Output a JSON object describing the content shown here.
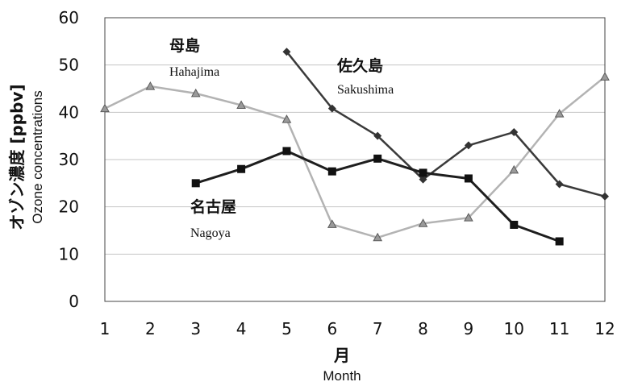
{
  "chart_data": {
    "type": "line",
    "title": "",
    "xlabel": "月",
    "xlabel_en": "Month",
    "ylabel": "オゾン濃度 [ppbv]",
    "ylabel_en": "Ozone concentrations",
    "x": [
      1,
      2,
      3,
      4,
      5,
      6,
      7,
      8,
      9,
      10,
      11,
      12
    ],
    "xlim": [
      1,
      12
    ],
    "ylim": [
      0,
      60
    ],
    "yticks": [
      0,
      10,
      20,
      30,
      40,
      50,
      60
    ],
    "grid": "horizontal",
    "series": [
      {
        "name": "母島",
        "name_en": "Hahajima",
        "marker": "triangle",
        "color": "#b3b3b3",
        "x": [
          1,
          2,
          3,
          4,
          5,
          6,
          7,
          8,
          9,
          10,
          11,
          12
        ],
        "y": [
          40.8,
          45.5,
          44.0,
          41.5,
          38.5,
          16.3,
          13.5,
          16.5,
          17.7,
          27.8,
          39.7,
          47.5
        ]
      },
      {
        "name": "佐久島",
        "name_en": "Sakushima",
        "marker": "diamond",
        "color": "#3a3a3a",
        "x": [
          5,
          6,
          7,
          8,
          9,
          10,
          11,
          12
        ],
        "y": [
          52.8,
          40.8,
          35.0,
          25.8,
          33.0,
          35.8,
          24.8,
          22.2
        ]
      },
      {
        "name": "名古屋",
        "name_en": "Nagoya",
        "marker": "square",
        "color": "#1e1e1e",
        "x": [
          3,
          4,
          5,
          6,
          7,
          8,
          9,
          10,
          11
        ],
        "y": [
          25.0,
          28.0,
          31.8,
          27.5,
          30.2,
          27.2,
          26.0,
          16.2,
          12.7
        ]
      }
    ]
  }
}
